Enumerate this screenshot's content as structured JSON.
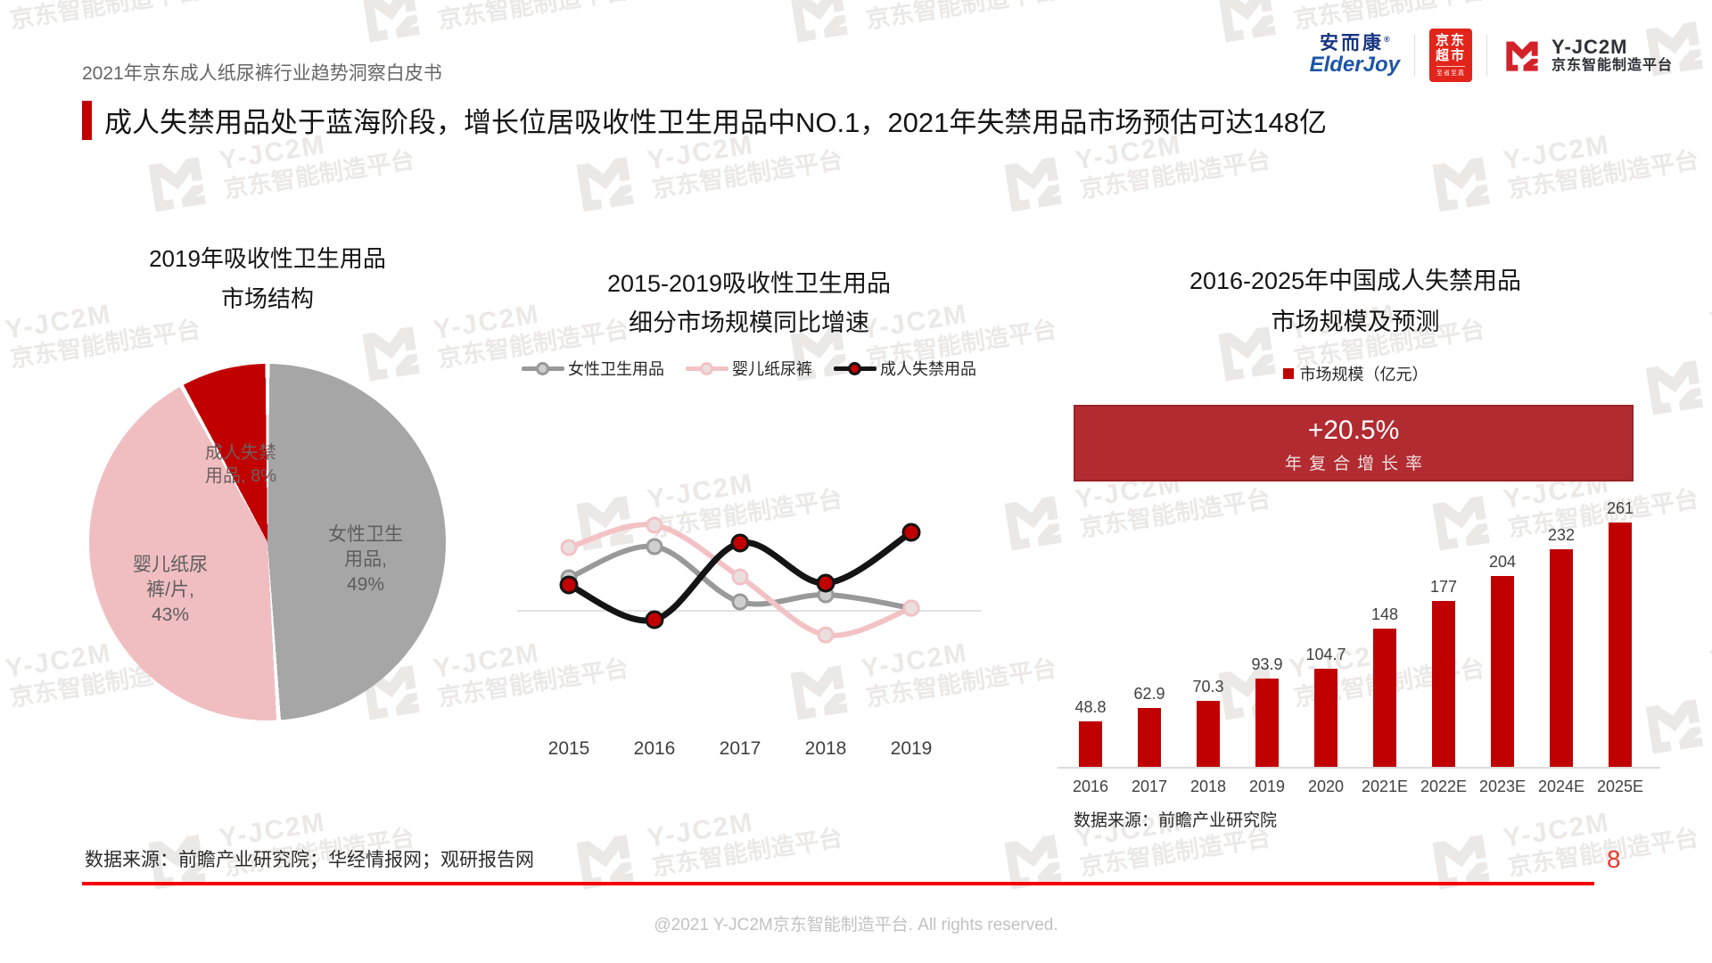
{
  "page": {
    "doc_header": "2021年京东成人纸尿裤行业趋势洞察白皮书",
    "main_title": "成人失禁用品处于蓝海阶段，增长位居吸收性卫生用品中NO.1，2021年失禁用品市场预估可达148亿",
    "page_number": "8",
    "footer_source": "数据来源：前瞻产业研究院；华经情报网；观研报告网",
    "copyright": "@2021 Y-JC2M京东智能制造平台. All rights reserved."
  },
  "logos": {
    "elderjoy_cn": "安而康",
    "elderjoy_reg": "®",
    "elderjoy_en": "ElderJoy",
    "jd_line1": "京东",
    "jd_line2": "超市",
    "jd_sub": "至省至真",
    "yjc2m_name": "Y-JC2M",
    "yjc2m_sub": "京东智能制造平台"
  },
  "watermark": {
    "line1": "Y-JC2M",
    "line2": "京东智能制造平台"
  },
  "colors": {
    "accent_red": "#C00000",
    "footer_rule_red": "#F40000",
    "banner_red": "#B12B31",
    "banner_border": "#9A2227",
    "jd_red": "#E1251B",
    "elderjoy_blue": "#16357F"
  },
  "chart_data": [
    {
      "type": "pie",
      "title": "2019年吸收性卫生用品市场结构",
      "title_lines": [
        "2019年吸收性卫生用品",
        "市场结构"
      ],
      "start_angle_deg": 0,
      "direction": "clockwise",
      "slices": [
        {
          "label": "女性卫生用品",
          "value": 49,
          "color": "#A6A6A6",
          "label_lines": [
            "女性卫生",
            "用品,",
            "49%"
          ]
        },
        {
          "label": "婴儿纸尿裤/片",
          "value": 43,
          "color": "#F0BEC1",
          "label_lines": [
            "婴儿纸尿",
            "裤/片,",
            "43%"
          ]
        },
        {
          "label": "成人失禁用品",
          "value": 8,
          "color": "#C00000",
          "label_lines": [
            "成人失禁",
            "用品, 8%"
          ]
        }
      ]
    },
    {
      "type": "line",
      "title": "2015-2019吸收性卫生用品细分市场规模同比增速",
      "title_lines": [
        "2015-2019吸收性卫生用品",
        "细分市场规模同比增速"
      ],
      "x": [
        "2015",
        "2016",
        "2017",
        "2018",
        "2019"
      ],
      "baseline": 0,
      "grid": false,
      "legend_position": "top",
      "values_estimated": true,
      "series": [
        {
          "name": "女性卫生用品",
          "color": "#999999",
          "marker_fill": "#CFCFCF",
          "values": [
            3.7,
            7.2,
            1.0,
            1.8,
            0.3
          ]
        },
        {
          "name": "婴儿纸尿裤",
          "color": "#F3C2C5",
          "marker_fill": "#EADFDF",
          "values": [
            7.1,
            9.6,
            3.8,
            -2.7,
            0.3
          ]
        },
        {
          "name": "成人失禁用品",
          "color": "#141414",
          "marker_fill": "#C00000",
          "values": [
            2.9,
            -1.0,
            7.6,
            3.1,
            8.8
          ]
        }
      ]
    },
    {
      "type": "bar",
      "title": "2016-2025年中国成人失禁用品市场规模及预测",
      "title_lines": [
        "2016-2025年中国成人失禁用品",
        "市场规模及预测"
      ],
      "legend_label": "市场规模（亿元）",
      "cagr_banner": {
        "headline": "+20.5%",
        "sub": "年复合增长率"
      },
      "categories": [
        "2016",
        "2017",
        "2018",
        "2019",
        "2020",
        "2021E",
        "2022E",
        "2023E",
        "2024E",
        "2025E"
      ],
      "values": [
        48.8,
        62.9,
        70.3,
        93.9,
        104.7,
        148,
        177,
        204,
        232,
        261
      ],
      "ylim": [
        0,
        280
      ],
      "bar_color": "#C00000",
      "source": "数据来源：前瞻产业研究院"
    }
  ]
}
